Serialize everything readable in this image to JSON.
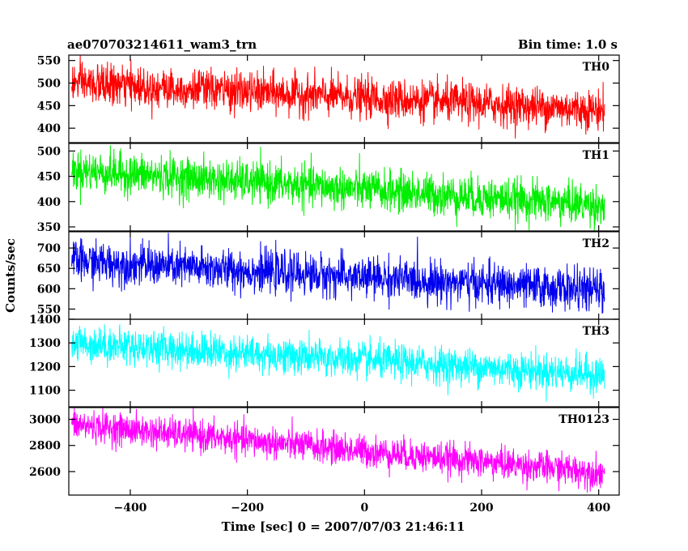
{
  "chart_data": {
    "type": "line",
    "title_left": "ae070703214611_wam3_trn",
    "title_right": "Bin time: 1.0 s",
    "xlabel": "Time [sec] 0 = 2007/07/03 21:46:11",
    "ylabel": "Counts/sec",
    "xlim": [
      -505,
      435
    ],
    "x_range": [
      -500,
      410
    ],
    "x_ticks": [
      -400,
      -200,
      0,
      200,
      400
    ],
    "x_tick_labels": [
      "−400",
      "−200",
      "0",
      "200",
      "400"
    ],
    "grid": false,
    "panels": [
      {
        "name": "TH0",
        "color": "#ff0000",
        "ylim": [
          368,
          562
        ],
        "y_ticks": [
          400,
          450,
          500,
          550
        ],
        "y_tick_labels": [
          "400",
          "450",
          "500",
          "550"
        ],
        "trend_start": 500,
        "trend_end": 440,
        "noise_sd": 22
      },
      {
        "name": "TH1",
        "color": "#00ee00",
        "ylim": [
          342,
          515
        ],
        "y_ticks": [
          350,
          400,
          450,
          500
        ],
        "y_tick_labels": [
          "350",
          "400",
          "450",
          "500"
        ],
        "trend_start": 462,
        "trend_end": 392,
        "noise_sd": 20
      },
      {
        "name": "TH2",
        "color": "#0000ee",
        "ylim": [
          525,
          740
        ],
        "y_ticks": [
          550,
          600,
          650,
          700
        ],
        "y_tick_labels": [
          "550",
          "600",
          "650",
          "700"
        ],
        "trend_start": 668,
        "trend_end": 595,
        "noise_sd": 25
      },
      {
        "name": "TH3",
        "color": "#00ffff",
        "ylim": [
          1030,
          1400
        ],
        "y_ticks": [
          1100,
          1200,
          1300,
          1400
        ],
        "y_tick_labels": [
          "1100",
          "1200",
          "1300",
          "1400"
        ],
        "trend_start": 1300,
        "trend_end": 1165,
        "noise_sd": 38
      },
      {
        "name": "TH0123",
        "color": "#ff00ff",
        "ylim": [
          2420,
          3090
        ],
        "y_ticks": [
          2600,
          2800,
          3000
        ],
        "y_tick_labels": [
          "2600",
          "2800",
          "3000"
        ],
        "trend_start": 2960,
        "trend_end": 2590,
        "noise_sd": 60
      }
    ]
  }
}
